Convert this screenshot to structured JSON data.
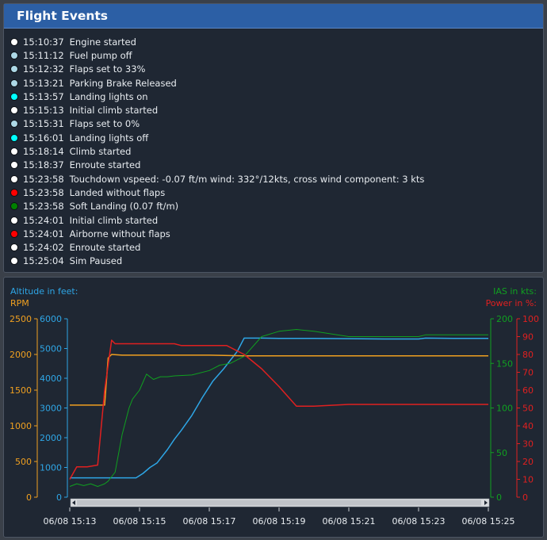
{
  "events_panel": {
    "title": "Flight Events",
    "events": [
      {
        "time": "15:10:37",
        "text": "Engine started",
        "dot_color": "#ffffff"
      },
      {
        "time": "15:11:12",
        "text": "Fuel pump off",
        "dot_color": "#add8e6"
      },
      {
        "time": "15:12:32",
        "text": "Flaps set to 33%",
        "dot_color": "#add8e6"
      },
      {
        "time": "15:13:21",
        "text": "Parking Brake Released",
        "dot_color": "#add8e6"
      },
      {
        "time": "15:13:57",
        "text": "Landing lights on",
        "dot_color": "#00ffff"
      },
      {
        "time": "15:15:13",
        "text": "Initial climb started",
        "dot_color": "#ffffff"
      },
      {
        "time": "15:15:31",
        "text": "Flaps set to 0%",
        "dot_color": "#add8e6"
      },
      {
        "time": "15:16:01",
        "text": "Landing lights off",
        "dot_color": "#00ffff"
      },
      {
        "time": "15:18:14",
        "text": "Climb started",
        "dot_color": "#ffffff"
      },
      {
        "time": "15:18:37",
        "text": "Enroute started",
        "dot_color": "#ffffff"
      },
      {
        "time": "15:23:58",
        "text": "Touchdown vspeed: -0.07 ft/m wind: 332°/12kts, cross wind component: 3 kts",
        "dot_color": "#ffffff"
      },
      {
        "time": "15:23:58",
        "text": "Landed without flaps",
        "dot_color": "#ff0000"
      },
      {
        "time": "15:23:58",
        "text": "Soft Landing (0.07 ft/m)",
        "dot_color": "#008000"
      },
      {
        "time": "15:24:01",
        "text": "Initial climb started",
        "dot_color": "#ffffff"
      },
      {
        "time": "15:24:01",
        "text": "Airborne without flaps",
        "dot_color": "#ff0000"
      },
      {
        "time": "15:24:02",
        "text": "Enroute started",
        "dot_color": "#ffffff"
      },
      {
        "time": "15:25:04",
        "text": "Sim Paused",
        "dot_color": "#ffffff"
      }
    ]
  },
  "colors": {
    "altitude": "#2ea6e6",
    "rpm": "#f0a020",
    "ias": "#10a020",
    "power": "#e02020",
    "header": "#2c5fa5",
    "panel_bg": "#1f2733"
  },
  "chart_data": {
    "type": "line",
    "axis_titles": {
      "altitude": "Altitude in feet:",
      "rpm": "RPM",
      "ias": "IAS in kts:",
      "power": "Power in %:"
    },
    "x_tick_labels": [
      "06/08 15:13",
      "06/08 15:15",
      "06/08 15:17",
      "06/08 15:19",
      "06/08 15:21",
      "06/08 15:23",
      "06/08 15:25"
    ],
    "x_range_minutes": [
      0,
      12
    ],
    "axes": {
      "rpm": {
        "min": 0,
        "max": 2500,
        "ticks": [
          0,
          500,
          1000,
          1500,
          2000,
          2500
        ]
      },
      "altitude": {
        "min": 0,
        "max": 6000,
        "ticks": [
          0,
          1000,
          2000,
          3000,
          4000,
          5000,
          6000
        ]
      },
      "ias": {
        "min": 0,
        "max": 200,
        "ticks": [
          0,
          50,
          100,
          150,
          200
        ]
      },
      "power": {
        "min": 0,
        "max": 100,
        "ticks": [
          0,
          10,
          20,
          30,
          40,
          50,
          60,
          70,
          80,
          90,
          100
        ]
      }
    },
    "series": [
      {
        "name": "Altitude in feet:",
        "axis": "altitude",
        "color": "#2ea6e6",
        "x": [
          0,
          0.5,
          1.0,
          1.5,
          1.7,
          1.9,
          2.1,
          2.3,
          2.5,
          2.8,
          3.0,
          3.2,
          3.5,
          3.8,
          4.1,
          4.4,
          4.6,
          4.8,
          5.0,
          5.5,
          6.0,
          7.0,
          8.0,
          9.0,
          10.0,
          10.2,
          11.0,
          12.0
        ],
        "y": [
          650,
          650,
          650,
          650,
          650,
          650,
          800,
          1000,
          1150,
          1600,
          1950,
          2250,
          2750,
          3350,
          3900,
          4300,
          4600,
          4900,
          5350,
          5350,
          5340,
          5340,
          5330,
          5320,
          5320,
          5350,
          5340,
          5340
        ]
      },
      {
        "name": "RPM",
        "axis": "rpm",
        "color": "#f0a020",
        "x": [
          0,
          0.8,
          1.0,
          1.1,
          1.2,
          1.5,
          2.0,
          3.0,
          4.0,
          5.0,
          6.0,
          7.0,
          8.0,
          9.0,
          10.0,
          11.0,
          12.0
        ],
        "y": [
          1290,
          1290,
          1290,
          1950,
          2000,
          1990,
          1990,
          1990,
          1990,
          1980,
          1980,
          1980,
          1980,
          1980,
          1980,
          1980,
          1980
        ]
      },
      {
        "name": "IAS in kts:",
        "axis": "ias",
        "color": "#10a020",
        "x": [
          0,
          0.2,
          0.4,
          0.6,
          0.8,
          1.0,
          1.1,
          1.3,
          1.5,
          1.7,
          1.8,
          2.0,
          2.2,
          2.4,
          2.6,
          2.8,
          3.0,
          3.5,
          4.0,
          4.3,
          4.6,
          5.0,
          5.5,
          6.0,
          6.5,
          7.0,
          8.0,
          9.0,
          10.0,
          10.2,
          11.0,
          12.0
        ],
        "y": [
          12,
          15,
          13,
          15,
          12,
          15,
          18,
          28,
          70,
          100,
          110,
          120,
          138,
          132,
          135,
          135,
          136,
          137,
          142,
          148,
          150,
          158,
          180,
          186,
          188,
          186,
          180,
          180,
          180,
          182,
          182,
          182
        ]
      },
      {
        "name": "Power in %:",
        "axis": "power",
        "color": "#e02020",
        "x": [
          0,
          0.2,
          0.5,
          0.8,
          1.0,
          1.2,
          1.3,
          1.5,
          2.0,
          3.0,
          3.2,
          4.0,
          4.5,
          5.0,
          5.5,
          6.0,
          6.5,
          7.0,
          8.0,
          9.0,
          10.0,
          11.0,
          12.0
        ],
        "y": [
          10,
          17,
          17,
          18,
          60,
          88,
          86,
          86,
          86,
          86,
          85,
          85,
          85,
          80,
          72,
          62,
          51,
          51,
          52,
          52,
          52,
          52,
          52
        ]
      }
    ],
    "grid": false
  }
}
